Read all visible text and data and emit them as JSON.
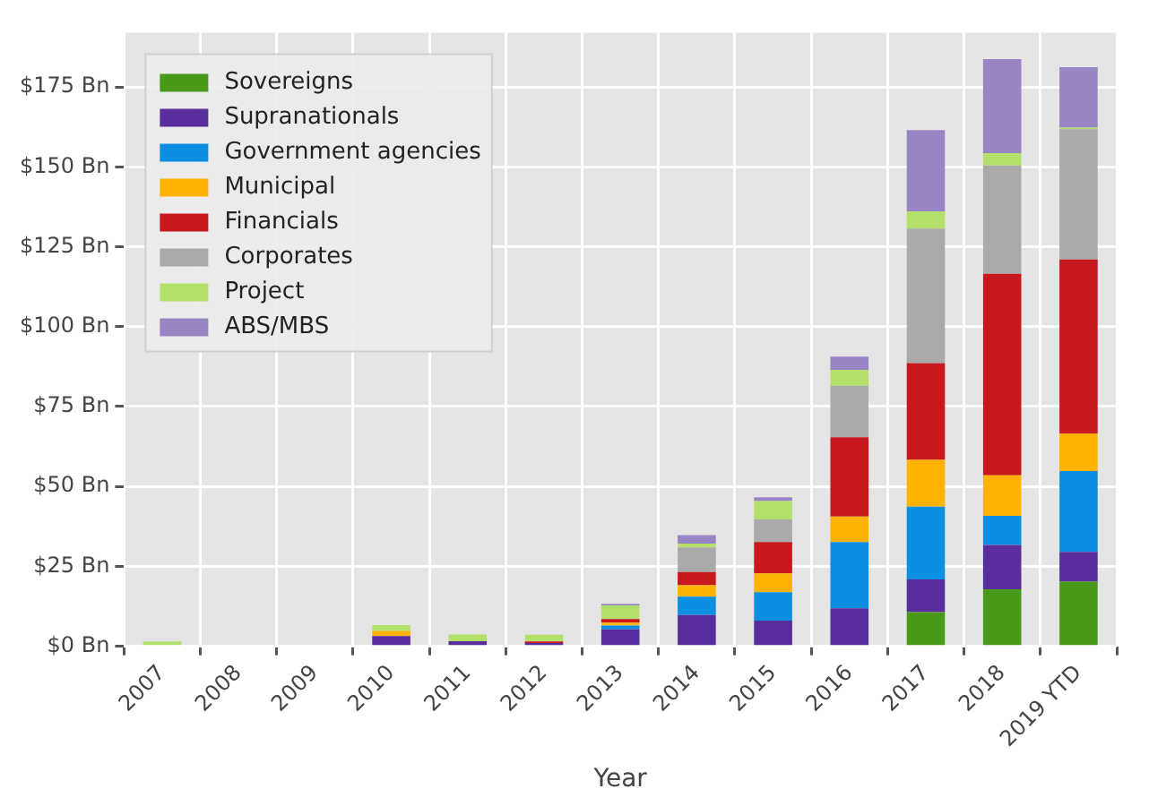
{
  "chart_data": {
    "type": "bar",
    "xlabel": "Year",
    "stacked": true,
    "legend": "top left",
    "grid": true,
    "categories": [
      "2007",
      "2008",
      "2009",
      "2010",
      "2011",
      "2012",
      "2013",
      "2014",
      "2015",
      "2016",
      "2017",
      "2018",
      "2019 YTD"
    ],
    "ylim": [
      0,
      192
    ],
    "yticks": [
      {
        "value": 0,
        "label": "$0 Bn"
      },
      {
        "value": 25,
        "label": "$25 Bn"
      },
      {
        "value": 50,
        "label": "$50 Bn"
      },
      {
        "value": 75,
        "label": "$75 Bn"
      },
      {
        "value": 100,
        "label": "$100 Bn"
      },
      {
        "value": 125,
        "label": "$125 Bn"
      },
      {
        "value": 150,
        "label": "$150 Bn"
      },
      {
        "value": 175,
        "label": "$175 Bn"
      }
    ],
    "series": [
      {
        "name": "Sovereigns",
        "color": "#4a9a1a",
        "values": [
          0,
          0,
          0,
          0,
          0,
          0,
          0,
          0,
          0,
          0,
          10.7,
          17.8,
          20.2
        ]
      },
      {
        "name": "Supranationals",
        "color": "#5a2d9c",
        "values": [
          0,
          0,
          0,
          3.2,
          1.6,
          1.0,
          5.3,
          9.8,
          8.0,
          11.9,
          10.2,
          13.9,
          9.3
        ]
      },
      {
        "name": "Government agencies",
        "color": "#0c8fe0",
        "values": [
          0,
          0,
          0,
          0,
          0,
          0,
          1.2,
          5.7,
          8.9,
          20.7,
          22.8,
          9.1,
          25.3
        ]
      },
      {
        "name": "Municipal",
        "color": "#ffb300",
        "values": [
          0,
          0,
          0,
          1.6,
          0,
          0,
          0.9,
          3.6,
          5.9,
          8.0,
          14.6,
          12.7,
          11.8
        ]
      },
      {
        "name": "Financials",
        "color": "#c8181e",
        "values": [
          0,
          0,
          0,
          0,
          0,
          0.5,
          1.1,
          4.1,
          9.8,
          24.8,
          30.3,
          63.0,
          54.4
        ]
      },
      {
        "name": "Corporates",
        "color": "#aaaaaa",
        "values": [
          0,
          0,
          0,
          0,
          0,
          0,
          null,
          7.7,
          7.1,
          16.1,
          42.1,
          33.9,
          40.8
        ]
      },
      {
        "name": "Project",
        "color": "#b3e06a",
        "values": [
          1.5,
          0,
          null,
          1.8,
          2.1,
          2.1,
          4.3,
          1.2,
          5.7,
          5.0,
          5.4,
          3.9,
          0.5
        ]
      },
      {
        "name": "ABS/MBS",
        "color": "#9a85c4",
        "values": [
          0,
          0,
          0,
          0,
          0,
          0,
          0.5,
          2.7,
          1.2,
          4.1,
          25.4,
          29.4,
          18.9
        ]
      }
    ]
  }
}
